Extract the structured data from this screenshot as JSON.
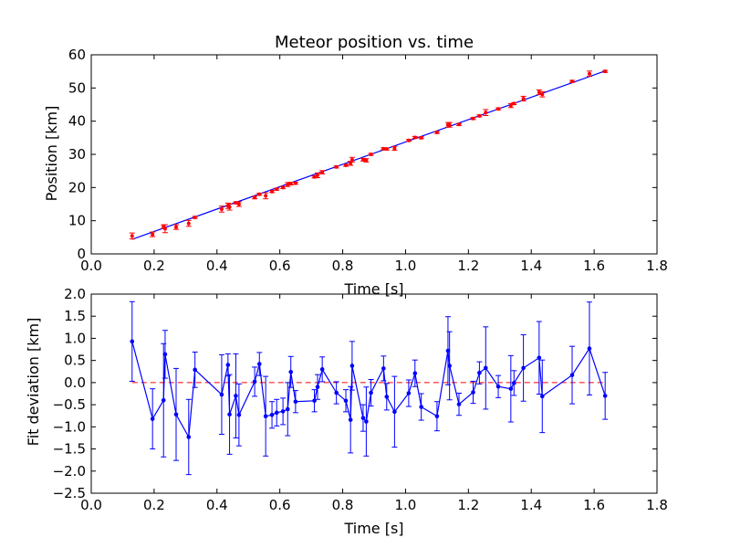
{
  "chart_data": [
    {
      "type": "scatter",
      "title": "Meteor position vs. time",
      "xlabel": "Time [s]",
      "ylabel": "Position [km]",
      "xlim": [
        0.0,
        1.8
      ],
      "ylim": [
        0,
        60
      ],
      "xticks": [
        "0.0",
        "0.2",
        "0.4",
        "0.6",
        "0.8",
        "1.0",
        "1.2",
        "1.4",
        "1.6",
        "1.8"
      ],
      "yticks": [
        "0",
        "10",
        "20",
        "30",
        "40",
        "50",
        "60"
      ],
      "grid": false,
      "point_color": "#ff0000",
      "fit_line": {
        "color": "#0000ff",
        "x": [
          0.13,
          1.64
        ],
        "y": [
          4.4,
          55.3
        ]
      },
      "series": [
        {
          "x": [
            0.13,
            0.195,
            0.23,
            0.235,
            0.27,
            0.31,
            0.33,
            0.415,
            0.435,
            0.44,
            0.46,
            0.47,
            0.52,
            0.535,
            0.555,
            0.575,
            0.59,
            0.61,
            0.625,
            0.635,
            0.65,
            0.71,
            0.72,
            0.735,
            0.78,
            0.81,
            0.825,
            0.83,
            0.865,
            0.875,
            0.89,
            0.93,
            0.94,
            0.965,
            1.01,
            1.03,
            1.05,
            1.1,
            1.135,
            1.14,
            1.17,
            1.215,
            1.235,
            1.255,
            1.295,
            1.335,
            1.345,
            1.375,
            1.425,
            1.435,
            1.53,
            1.585,
            1.635
          ],
          "y": [
            5.4,
            5.9,
            8.2,
            7.6,
            8.1,
            9.2,
            11.0,
            13.5,
            14.5,
            14.1,
            15.4,
            15.0,
            17.0,
            18.0,
            17.5,
            18.8,
            19.5,
            20.0,
            20.9,
            21.2,
            21.3,
            23.2,
            23.7,
            24.6,
            26.2,
            26.7,
            27.3,
            28.4,
            28.4,
            28.2,
            30.0,
            31.7,
            31.6,
            31.8,
            34.2,
            35.1,
            35.0,
            36.6,
            38.9,
            38.9,
            39.0,
            40.8,
            41.6,
            42.6,
            43.7,
            44.7,
            45.3,
            46.8,
            48.7,
            48.1,
            52.0,
            54.3,
            55.0
          ],
          "err": [
            0.9,
            0.7,
            0.55,
            1.2,
            0.7,
            0.9,
            0.3,
            0.9,
            0.8,
            0.9,
            0.3,
            0.7,
            0.4,
            0.3,
            0.9,
            0.3,
            0.3,
            0.3,
            0.6,
            0.4,
            0.3,
            0.3,
            0.7,
            0.5,
            0.3,
            0.3,
            0.6,
            0.7,
            0.4,
            0.5,
            0.3,
            0.3,
            0.3,
            0.6,
            0.3,
            0.3,
            0.3,
            0.3,
            0.7,
            0.7,
            0.3,
            0.3,
            0.3,
            0.9,
            0.3,
            0.6,
            0.3,
            0.7,
            0.7,
            0.8,
            0.3,
            0.8,
            0.3
          ]
        }
      ]
    },
    {
      "type": "line",
      "title": "",
      "xlabel": "Time [s]",
      "ylabel": "Fit deviation [km]",
      "xlim": [
        0.0,
        1.8
      ],
      "ylim": [
        -2.5,
        2.0
      ],
      "xticks": [
        "0.0",
        "0.2",
        "0.4",
        "0.6",
        "0.8",
        "1.0",
        "1.2",
        "1.4",
        "1.6",
        "1.8"
      ],
      "yticks": [
        "−2.5",
        "−2.0",
        "−1.5",
        "−1.0",
        "−0.5",
        "0.0",
        "0.5",
        "1.0",
        "1.5",
        "2.0"
      ],
      "grid": false,
      "line_color": "#0000ff",
      "zero_line": {
        "color": "#ff0000",
        "style": "dashed",
        "y": 0.0
      },
      "series": [
        {
          "x": [
            0.13,
            0.195,
            0.23,
            0.235,
            0.27,
            0.31,
            0.33,
            0.415,
            0.435,
            0.44,
            0.46,
            0.47,
            0.52,
            0.535,
            0.555,
            0.575,
            0.59,
            0.61,
            0.625,
            0.635,
            0.65,
            0.71,
            0.72,
            0.735,
            0.78,
            0.81,
            0.825,
            0.83,
            0.865,
            0.875,
            0.89,
            0.93,
            0.94,
            0.965,
            1.01,
            1.03,
            1.05,
            1.1,
            1.135,
            1.14,
            1.17,
            1.215,
            1.235,
            1.255,
            1.295,
            1.335,
            1.345,
            1.375,
            1.425,
            1.435,
            1.53,
            1.585,
            1.635
          ],
          "y": [
            0.93,
            -0.82,
            -0.4,
            0.64,
            -0.72,
            -1.23,
            0.29,
            -0.27,
            0.4,
            -0.72,
            -0.3,
            -0.73,
            0.02,
            0.42,
            -0.76,
            -0.73,
            -0.68,
            -0.65,
            -0.6,
            0.24,
            -0.43,
            -0.41,
            -0.1,
            0.3,
            -0.23,
            -0.41,
            -0.84,
            0.38,
            -0.8,
            -0.88,
            -0.23,
            0.32,
            -0.32,
            -0.66,
            -0.24,
            0.21,
            -0.55,
            -0.76,
            0.72,
            0.38,
            -0.49,
            -0.22,
            0.22,
            0.33,
            -0.09,
            -0.14,
            -0.01,
            0.33,
            0.56,
            -0.31,
            0.17,
            0.77,
            -0.3
          ],
          "err": [
            0.9,
            0.68,
            1.28,
            0.54,
            1.04,
            0.85,
            0.4,
            0.9,
            0.25,
            0.9,
            0.95,
            0.7,
            0.33,
            0.26,
            0.9,
            0.3,
            0.3,
            0.3,
            0.6,
            0.35,
            0.25,
            0.25,
            0.28,
            0.28,
            0.25,
            0.25,
            0.75,
            0.55,
            0.3,
            0.78,
            0.3,
            0.28,
            0.3,
            0.8,
            0.3,
            0.3,
            0.3,
            0.33,
            0.77,
            0.77,
            0.25,
            0.25,
            0.25,
            0.93,
            0.25,
            0.75,
            0.28,
            0.75,
            0.82,
            0.82,
            0.65,
            1.05,
            0.53
          ]
        }
      ]
    }
  ]
}
